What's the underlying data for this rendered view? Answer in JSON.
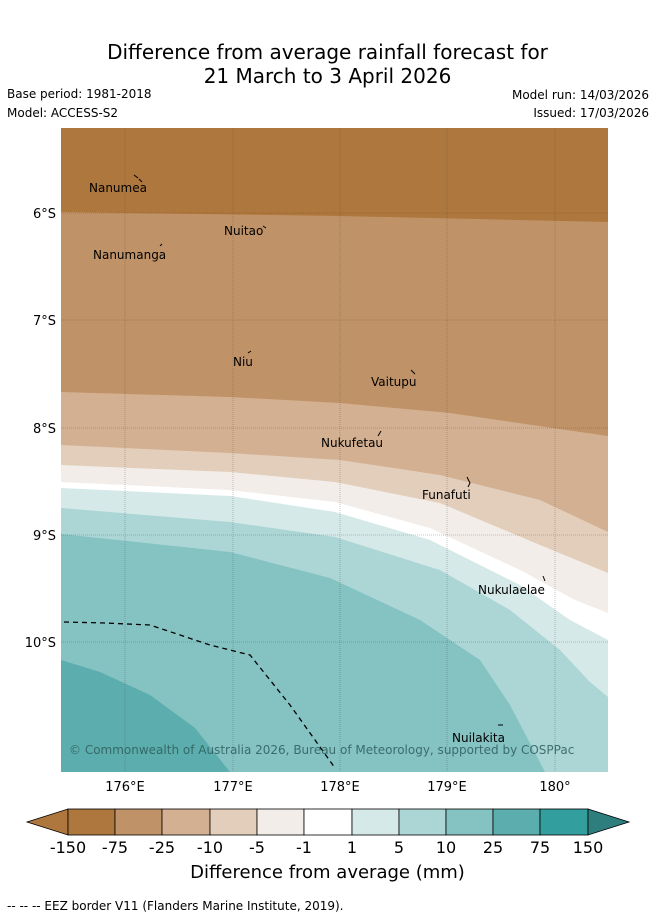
{
  "title": {
    "line1": "Difference from average rainfall forecast for",
    "line2": "21 March to 3 April 2026"
  },
  "meta": {
    "base_period": "Base period: 1981-2018",
    "model": "Model: ACCESS-S2",
    "model_run": "Model run: 14/03/2026",
    "issued": "Issued: 17/03/2026"
  },
  "axes": {
    "lat_labels": [
      "6°S",
      "7°S",
      "8°S",
      "9°S",
      "10°S"
    ],
    "lon_labels": [
      "176°E",
      "177°E",
      "178°E",
      "179°E",
      "180°"
    ]
  },
  "places": [
    "Nanumea",
    "Nuitao",
    "Nanumanga",
    "Niu",
    "Vaitupu",
    "Nukufetau",
    "Funafuti",
    "Nukulaelae",
    "Nuilakita"
  ],
  "copyright": "© Commonwealth of Australia 2026, Bureau of Meteorology, supported by COSPPac",
  "colorbar": {
    "ticks": [
      "-150",
      "-75",
      "-25",
      "-10",
      "-5",
      "-1",
      "1",
      "5",
      "10",
      "25",
      "75",
      "150"
    ],
    "colors": [
      "#ae773d",
      "#c09267",
      "#d3b091",
      "#e3cebb",
      "#f2ede8",
      "#ffffff",
      "#d6e9e9",
      "#acd6d6",
      "#85c2c2",
      "#5cadad",
      "#339e9e",
      "#2e7e7e"
    ],
    "title": "Difference from average (mm)"
  },
  "footer": "-- --  -- EEZ border V11 (Flanders Marine Institute, 2019)."
}
